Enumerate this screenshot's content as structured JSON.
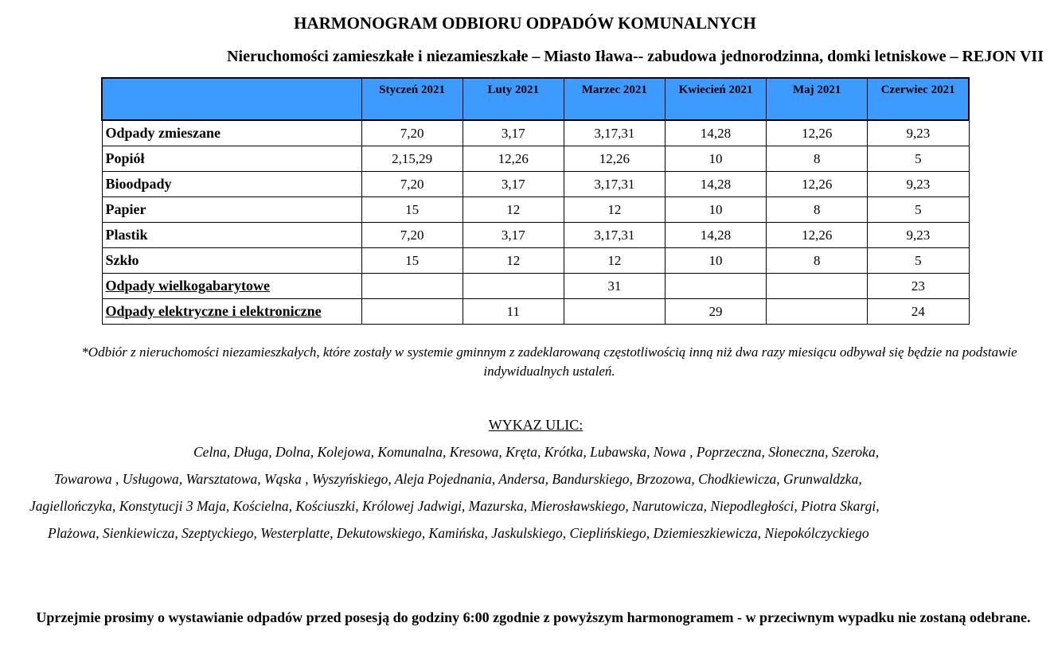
{
  "title": "HARMONOGRAM ODBIORU ODPADÓW KOMUNALNYCH",
  "subtitle": "Nieruchomości zamieszkałe i niezamieszkałe  – Miasto Iława-- zabudowa jednorodzinna, domki letniskowe – REJON VII",
  "table": {
    "headers": [
      "",
      "Styczeń 2021",
      "Luty 2021",
      "Marzec 2021",
      "Kwiecień 2021",
      "Maj 2021",
      "Czerwiec 2021"
    ],
    "rows": [
      {
        "label": "Odpady zmieszane",
        "underline": false,
        "cells": [
          "7,20",
          "3,17",
          "3,17,31",
          "14,28",
          "12,26",
          "9,23"
        ]
      },
      {
        "label": "Popiół",
        "underline": false,
        "cells": [
          "2,15,29",
          "12,26",
          "12,26",
          "10",
          "8",
          "5"
        ]
      },
      {
        "label": "Bioodpady",
        "underline": false,
        "cells": [
          "7,20",
          "3,17",
          "3,17,31",
          "14,28",
          "12,26",
          "9,23"
        ]
      },
      {
        "label": "Papier",
        "underline": false,
        "cells": [
          "15",
          "12",
          "12",
          "10",
          "8",
          "5"
        ]
      },
      {
        "label": "Plastik",
        "underline": false,
        "cells": [
          "7,20",
          "3,17",
          "3,17,31",
          "14,28",
          "12,26",
          "9,23"
        ]
      },
      {
        "label": "Szkło",
        "underline": false,
        "cells": [
          "15",
          "12",
          "12",
          "10",
          "8",
          "5"
        ]
      },
      {
        "label": "Odpady wielkogabarytowe",
        "underline": true,
        "cells": [
          "",
          "",
          "31",
          "",
          "",
          "23"
        ]
      },
      {
        "label": "Odpady elektryczne i elektroniczne",
        "underline": true,
        "cells": [
          "",
          "11",
          "",
          "29",
          "",
          "24"
        ]
      }
    ],
    "header_color": "#3d9bff"
  },
  "note": "*Odbiór z nieruchomości niezamieszkałych, które zostały w systemie gminnym z zadeklarowaną częstotliwością inną niż dwa razy miesiącu odbywał się będzie na podstawie indywidualnych ustaleń.",
  "streets_heading": "WYKAZ ULIC:",
  "streets_lines": [
    "Celna, Długa, Dolna, Kolejowa, Komunalna, Kresowa, Kręta, Krótka, Lubawska, Nowa , Poprzeczna, Słoneczna, Szeroka,",
    "Towarowa , Usługowa, Warsztatowa, Wąska , Wyszyńskiego, Aleja Pojednania, Andersa, Bandurskiego, Brzozowa, Chodkiewicza, Grunwaldzka,",
    "Jagiellończyka, Konstytucji 3 Maja, Kościelna, Kościuszki, Królowej Jadwigi, Mazurska, Mierosławskiego, Narutowicza, Niepodległości, Piotra Skargi,",
    "Plażowa, Sienkiewicza, Szeptyckiego, Westerplatte, Dekutowskiego, Kamińska, Jaskulskiego, Cieplińskiego, Dziemieszkiewicza, Niepokólczyckiego"
  ],
  "footer": "Uprzejmie prosimy o wystawianie odpadów przed posesją do godziny 6:00 zgodnie z powyższym harmonogramem - w przeciwnym wypadku nie zostaną odebrane."
}
